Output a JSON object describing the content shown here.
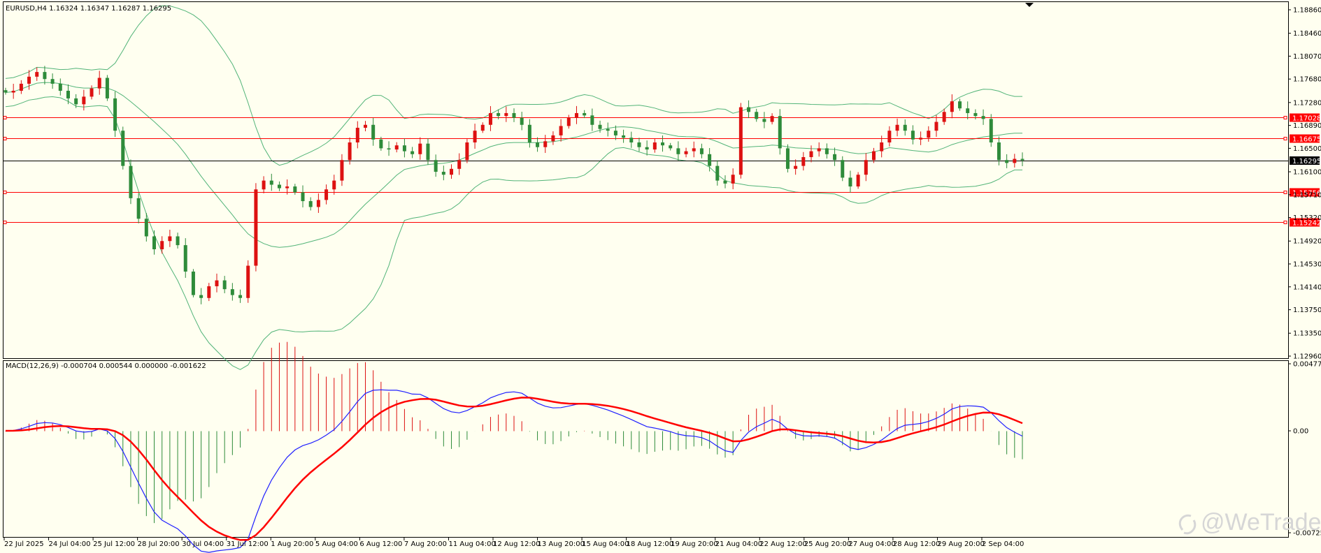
{
  "symbol_header": "EURUSD,H4  1.16324 1.16347 1.16287 1.16295",
  "macd_header": "MACD(12,26,9) -0.000704 0.000544 0.000000 -0.001622",
  "watermark": "@WeTrade",
  "colors": {
    "background": "#fffff0",
    "bull": "#dd1111",
    "bear": "#2e8b3a",
    "bands": "#52b478",
    "level": "#ff0000",
    "current": "#000000",
    "macd_line": "#1f1fff",
    "signal_line": "#ff0000"
  },
  "chart_data": [
    {
      "type": "candlestick",
      "title": "EURUSD,H4",
      "ylim": [
        1.1296,
        1.1886
      ],
      "y_ticks": [
        "1.18860",
        "1.18460",
        "1.18070",
        "1.17680",
        "1.17280",
        "1.16890",
        "1.16500",
        "1.16100",
        "1.15710",
        "1.15320",
        "1.14920",
        "1.14530",
        "1.14140",
        "1.13750",
        "1.13350",
        "1.12960"
      ],
      "x_ticks": [
        "22 Jul 2025",
        "24 Jul 04:00",
        "25 Jul 12:00",
        "28 Jul 20:00",
        "30 Jul 04:00",
        "31 Jul 12:00",
        "1 Aug 20:00",
        "5 Aug 04:00",
        "6 Aug 12:00",
        "7 Aug 20:00",
        "11 Aug 04:00",
        "12 Aug 12:00",
        "13 Aug 20:00",
        "15 Aug 04:00",
        "18 Aug 12:00",
        "19 Aug 20:00",
        "21 Aug 04:00",
        "22 Aug 12:00",
        "25 Aug 20:00",
        "27 Aug 04:00",
        "28 Aug 12:00",
        "29 Aug 20:00",
        "2 Sep 04:00"
      ],
      "close_path": [
        1.1745,
        1.1748,
        1.176,
        1.1772,
        1.178,
        1.1768,
        1.176,
        1.1748,
        1.1735,
        1.1725,
        1.1738,
        1.1752,
        1.177,
        1.1735,
        1.168,
        1.162,
        1.1565,
        1.153,
        1.15,
        1.1478,
        1.1492,
        1.15,
        1.1485,
        1.144,
        1.14,
        1.1395,
        1.1415,
        1.1425,
        1.141,
        1.14,
        1.1395,
        1.145,
        1.158,
        1.1595,
        1.1588,
        1.1582,
        1.1585,
        1.1575,
        1.156,
        1.155,
        1.1562,
        1.158,
        1.1595,
        1.163,
        1.166,
        1.1685,
        1.169,
        1.1665,
        1.165,
        1.1648,
        1.1655,
        1.1645,
        1.164,
        1.1658,
        1.163,
        1.161,
        1.1605,
        1.1615,
        1.163,
        1.166,
        1.168,
        1.169,
        1.171,
        1.1705,
        1.171,
        1.1702,
        1.169,
        1.166,
        1.1652,
        1.1662,
        1.1672,
        1.1688,
        1.1702,
        1.171,
        1.1706,
        1.169,
        1.1683,
        1.168,
        1.1672,
        1.1668,
        1.166,
        1.1652,
        1.1648,
        1.166,
        1.1655,
        1.165,
        1.164,
        1.1645,
        1.165,
        1.164,
        1.162,
        1.1595,
        1.159,
        1.1605,
        1.172,
        1.1712,
        1.17,
        1.1695,
        1.1705,
        1.165,
        1.1615,
        1.162,
        1.1635,
        1.1645,
        1.165,
        1.164,
        1.163,
        1.16,
        1.1585,
        1.1605,
        1.163,
        1.1645,
        1.166,
        1.168,
        1.169,
        1.168,
        1.1665,
        1.1668,
        1.168,
        1.1695,
        1.1712,
        1.173,
        1.1718,
        1.171,
        1.1705,
        1.17,
        1.166,
        1.163,
        1.1625,
        1.1632,
        1.16295
      ],
      "levels": [
        {
          "label": "1.17028",
          "value": 1.17028
        },
        {
          "label": "1.16675",
          "value": 1.16675
        },
        {
          "label": "1.15756",
          "value": 1.15756
        },
        {
          "label": "1.15242",
          "value": 1.15242
        }
      ],
      "current_price": {
        "label": "1.16295",
        "value": 1.16295
      }
    },
    {
      "type": "macd",
      "title": "MACD(12,26,9)",
      "ylim": [
        -0.007257,
        0.004774
      ],
      "y_ticks": [
        "0.004774",
        "0.00",
        "-0.007257"
      ]
    }
  ]
}
